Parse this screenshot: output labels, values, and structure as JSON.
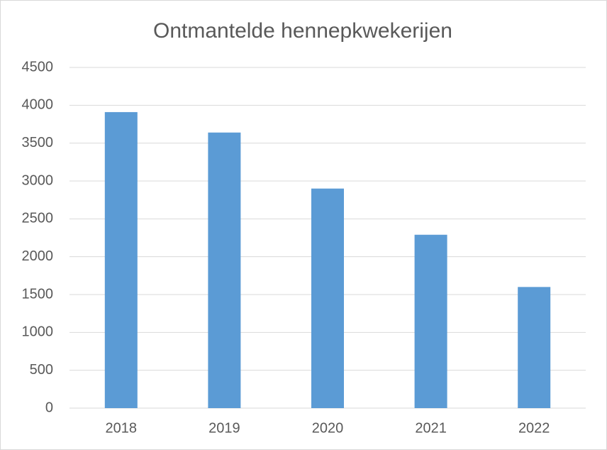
{
  "chart_data": {
    "type": "bar",
    "title": "Ontmantelde hennepkwekerijen",
    "categories": [
      "2018",
      "2019",
      "2020",
      "2021",
      "2022"
    ],
    "values": [
      3910,
      3640,
      2900,
      2290,
      1600
    ],
    "color": "#5b9bd5",
    "ylim": [
      0,
      4500
    ],
    "yticks": [
      0,
      500,
      1000,
      1500,
      2000,
      2500,
      3000,
      3500,
      4000,
      4500
    ],
    "grid": true
  }
}
